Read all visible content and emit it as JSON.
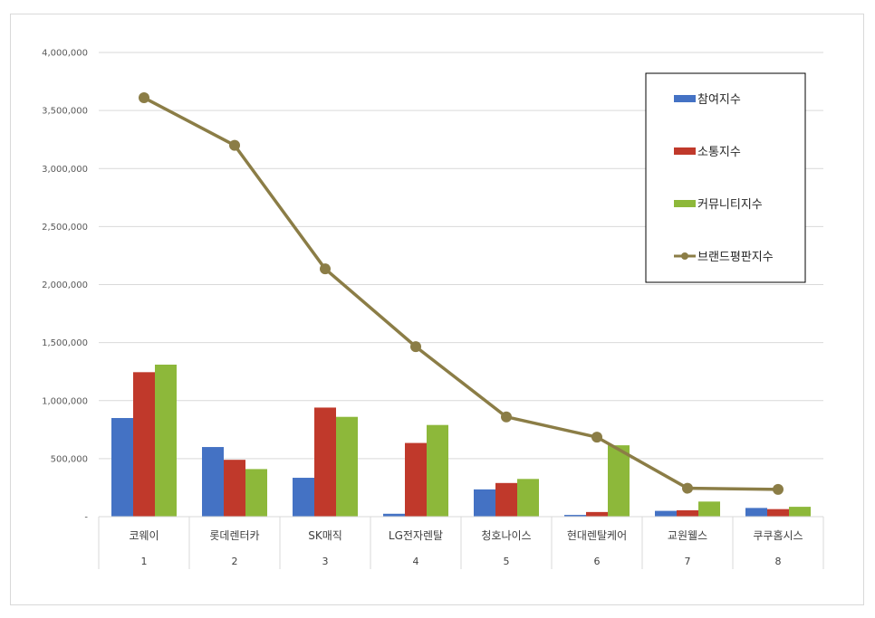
{
  "chart_data": {
    "type": "bar",
    "categories": [
      "코웨이",
      "롯데렌터카",
      "SK매직",
      "LG전자렌탈",
      "청호나이스",
      "현대렌탈케어",
      "교원웰스",
      "쿠쿠홈시스"
    ],
    "ranks": [
      "1",
      "2",
      "3",
      "4",
      "5",
      "6",
      "7",
      "8"
    ],
    "series": [
      {
        "name": "참여지수",
        "type": "bar",
        "color": "#4472C4",
        "values": [
          850000,
          600000,
          335000,
          25000,
          235000,
          15000,
          50000,
          75000
        ]
      },
      {
        "name": "소통지수",
        "type": "bar",
        "color": "#C0392B",
        "values": [
          1245000,
          490000,
          940000,
          635000,
          290000,
          40000,
          55000,
          65000
        ]
      },
      {
        "name": "커뮤니티지수",
        "type": "bar",
        "color": "#8DB83A",
        "values": [
          1310000,
          410000,
          860000,
          790000,
          325000,
          615000,
          130000,
          85000
        ]
      },
      {
        "name": "브랜드평판지수",
        "type": "line",
        "color": "#8B7D46",
        "values": [
          3610000,
          3200000,
          2135000,
          1465000,
          860000,
          685000,
          245000,
          235000
        ]
      }
    ],
    "y_ticks": [
      "-",
      "500,000",
      "1,000,000",
      "1,500,000",
      "2,000,000",
      "2,500,000",
      "3,000,000",
      "3,500,000",
      "4,000,000"
    ],
    "ylim": [
      0,
      4000000
    ],
    "grid": true,
    "legend_position": "top-right"
  }
}
